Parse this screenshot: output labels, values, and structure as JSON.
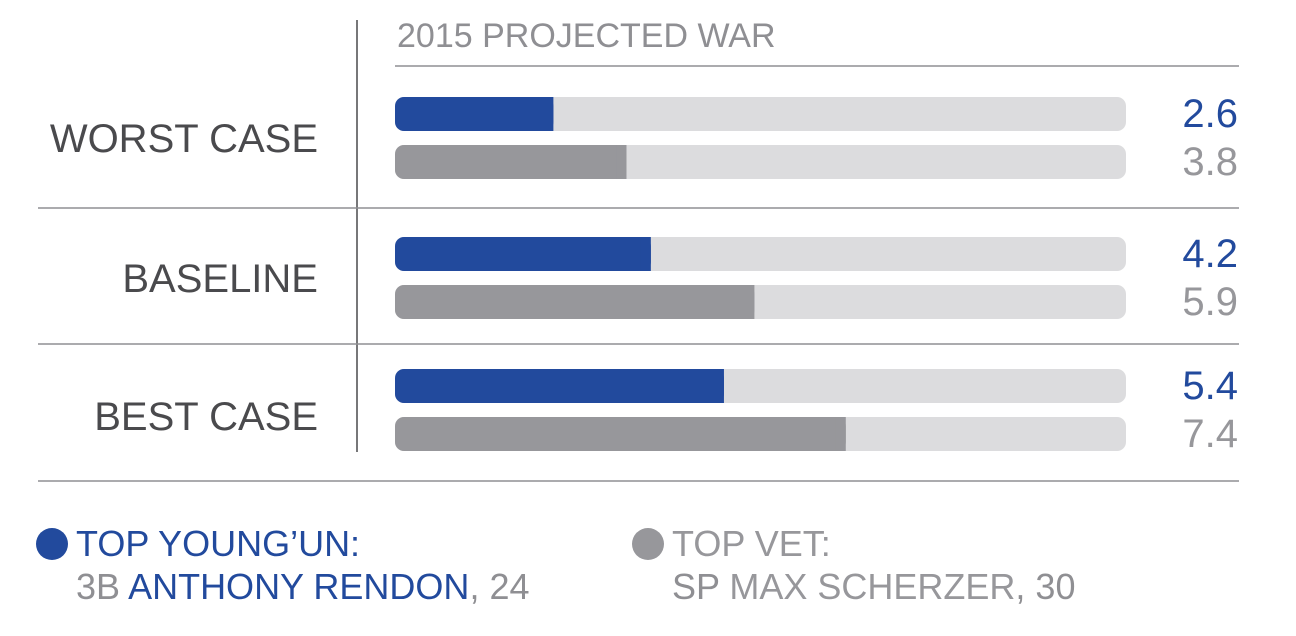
{
  "chart_data": {
    "type": "bar",
    "orientation": "horizontal",
    "title": "2015 PROJECTED WAR",
    "categories": [
      "WORST CASE",
      "BASELINE",
      "BEST CASE"
    ],
    "series": [
      {
        "name": "TOP YOUNG’UN: 3B ANTHONY RENDON, 24",
        "values": [
          2.6,
          4.2,
          5.4
        ],
        "value_labels": [
          "2.6",
          "4.2",
          "5.4"
        ],
        "color": "#224a9d"
      },
      {
        "name": "TOP VET: SP MAX SCHERZER, 30",
        "values": [
          3.8,
          5.9,
          7.4
        ],
        "value_labels": [
          "3.8",
          "5.9",
          "7.4"
        ],
        "color": "#97979b"
      }
    ],
    "xlim": [
      0,
      12
    ],
    "track_color": "#dcdcde",
    "grid": false
  },
  "legend": [
    {
      "line1": "TOP YOUNG’UN:",
      "pos": "3B",
      "player": "ANTHONY RENDON",
      "age": ", 24",
      "color": "#224a9d"
    },
    {
      "line1": "TOP VET:",
      "pos": "SP",
      "player": "MAX SCHERZER",
      "age": ", 30",
      "color": "#97979b"
    }
  ]
}
